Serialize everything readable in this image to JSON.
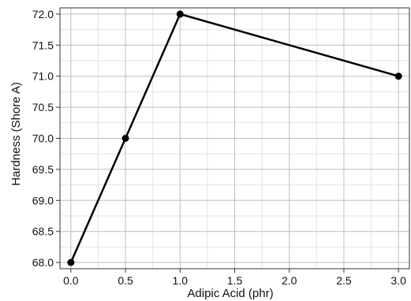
{
  "chart_data": {
    "type": "line",
    "title": "",
    "xlabel": "Adipic Acid (phr)",
    "ylabel": "Hardness (Shore A)",
    "xlim": [
      -0.1,
      3.1
    ],
    "ylim": [
      67.9,
      72.1
    ],
    "x_ticks": [
      0.0,
      0.5,
      1.0,
      1.5,
      2.0,
      2.5,
      3.0
    ],
    "x_tick_labels": [
      "0.0",
      "0.5",
      "1.0",
      "1.5",
      "2.0",
      "2.5",
      "3.0"
    ],
    "y_ticks": [
      68.0,
      68.5,
      69.0,
      69.5,
      70.0,
      70.5,
      71.0,
      71.5,
      72.0
    ],
    "y_tick_labels": [
      "68.0",
      "68.5",
      "69.0",
      "69.5",
      "70.0",
      "70.5",
      "71.0",
      "71.5",
      "72.0"
    ],
    "grid": true,
    "series": [
      {
        "x": [
          0.0,
          0.5,
          1.0,
          3.0
        ],
        "y": [
          68.0,
          70.0,
          72.0,
          71.0
        ],
        "color": "#000000",
        "marker": "circle"
      }
    ]
  }
}
